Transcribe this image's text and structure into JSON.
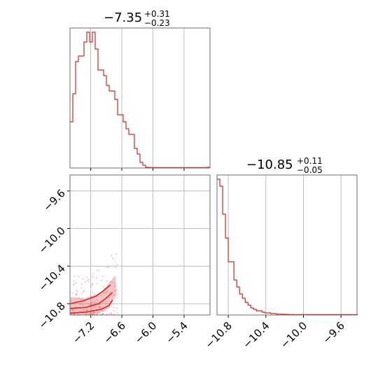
{
  "figure": {
    "panel_a_title": {
      "main": "−7.35",
      "sup": "+0.31",
      "sub": "−0.23"
    },
    "panel_d_title": {
      "main": "−10.85",
      "sup": "+0.11",
      "sub": "−0.05"
    }
  },
  "chart_data": {
    "type": "corner",
    "line_color": "#d62728",
    "grid": true,
    "parameters": [
      {
        "median": -7.35,
        "err_plus": 0.31,
        "err_minus": 0.23,
        "range": [
          -7.6,
          -4.9
        ]
      },
      {
        "median": -10.85,
        "err_plus": 0.11,
        "err_minus": 0.05,
        "range": [
          -10.92,
          -9.43
        ]
      }
    ],
    "panels": [
      {
        "id": "hist_param1",
        "type": "step-histogram",
        "xlim": [
          -7.6,
          -4.9
        ],
        "xticks": [
          -7.2,
          -6.6,
          -6.0,
          -5.4
        ],
        "bin_edges_start": -7.6,
        "bin_width": 0.054,
        "heights": [
          0.33,
          0.53,
          0.76,
          0.8,
          0.8,
          0.9,
          0.97,
          0.9,
          0.97,
          0.85,
          0.7,
          0.7,
          0.66,
          0.59,
          0.55,
          0.55,
          0.49,
          0.38,
          0.38,
          0.33,
          0.28,
          0.24,
          0.24,
          0.14,
          0.1,
          0.04,
          0.02,
          0.005,
          0.004,
          0.003,
          0.003,
          0.003,
          0.003,
          0.003,
          0.003,
          0.003,
          0.003,
          0.003,
          0.003,
          0.003,
          0.003,
          0.003,
          0.003,
          0.003,
          0.003,
          0.003,
          0.003,
          0.003,
          0.003,
          0.005
        ]
      },
      {
        "id": "joint_param1_param2",
        "type": "2d-contour",
        "xlim": [
          -7.6,
          -4.9
        ],
        "ylim": [
          -10.92,
          -9.43
        ],
        "xticks": [
          -7.2,
          -6.6,
          -6.0,
          -5.4
        ],
        "xtick_labels": [
          "−7.2",
          "−6.6",
          "−6.0",
          "−5.4"
        ],
        "yticks": [
          -9.6,
          -10.0,
          -10.4,
          -10.8
        ],
        "ytick_labels": [
          "−9.6",
          "−10.0",
          "−10.4",
          "−10.8"
        ],
        "contours": [
          [
            [
              -7.6,
              -10.9
            ],
            [
              -7.3,
              -10.89
            ],
            [
              -7.0,
              -10.86
            ],
            [
              -6.85,
              -10.82
            ],
            [
              -6.78,
              -10.76
            ]
          ],
          [
            [
              -7.6,
              -10.85
            ],
            [
              -7.3,
              -10.84
            ],
            [
              -7.05,
              -10.8
            ],
            [
              -6.9,
              -10.74
            ],
            [
              -6.78,
              -10.68
            ]
          ],
          [
            [
              -7.6,
              -10.8
            ],
            [
              -7.35,
              -10.77
            ],
            [
              -7.1,
              -10.72
            ],
            [
              -6.95,
              -10.66
            ],
            [
              -6.82,
              -10.6
            ]
          ]
        ]
      },
      {
        "id": "hist_param2",
        "type": "step-histogram",
        "xlim": [
          -10.92,
          -9.43
        ],
        "xticks": [
          -10.8,
          -10.4,
          -10.0,
          -9.6
        ],
        "xtick_labels": [
          "−10.8",
          "−10.4",
          "−10.0",
          "−9.6"
        ],
        "bin_edges_start": -10.92,
        "bin_width": 0.03,
        "heights": [
          0.97,
          0.92,
          0.72,
          0.55,
          0.38,
          0.38,
          0.25,
          0.2,
          0.15,
          0.12,
          0.09,
          0.07,
          0.05,
          0.04,
          0.03,
          0.03,
          0.02,
          0.015,
          0.015,
          0.01,
          0.01,
          0.007,
          0.006,
          0.005,
          0.005,
          0.004,
          0.004,
          0.003,
          0.003,
          0.003,
          0.003,
          0.003,
          0.003,
          0.003,
          0.003,
          0.003,
          0.003,
          0.003,
          0.003,
          0.003,
          0.003,
          0.003,
          0.003,
          0.003,
          0.003,
          0.003,
          0.003,
          0.003,
          0.003,
          0.003
        ]
      }
    ]
  }
}
